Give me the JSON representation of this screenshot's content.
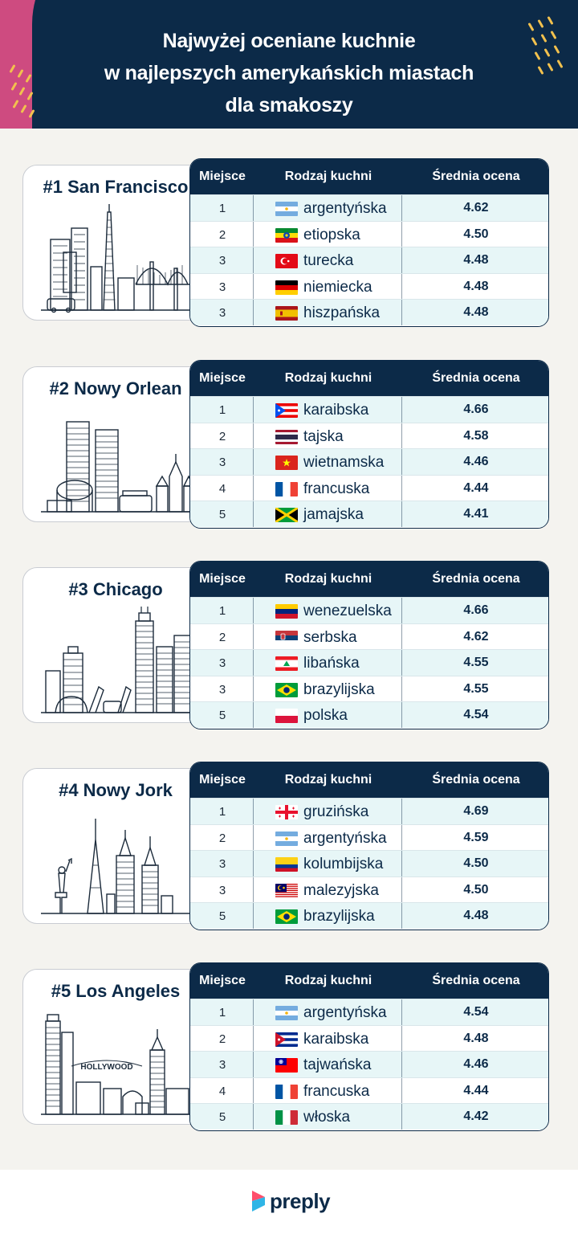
{
  "title": {
    "line1": "Najwyżej oceniane kuchnie",
    "line2": "w najlepszych amerykańskich miastach",
    "line3": "dla smakoszy"
  },
  "table_headers": {
    "rank": "Miejsce",
    "cuisine": "Rodzaj kuchni",
    "score": "Średnia ocena"
  },
  "cities": [
    {
      "name": "#1 San Francisco",
      "rows": [
        {
          "rank": "1",
          "cuisine": "argentyńska",
          "score": "4.62",
          "flag": "argentina"
        },
        {
          "rank": "2",
          "cuisine": "etiopska",
          "score": "4.50",
          "flag": "ethiopia"
        },
        {
          "rank": "3",
          "cuisine": "turecka",
          "score": "4.48",
          "flag": "turkey"
        },
        {
          "rank": "3",
          "cuisine": "niemiecka",
          "score": "4.48",
          "flag": "germany"
        },
        {
          "rank": "3",
          "cuisine": "hiszpańska",
          "score": "4.48",
          "flag": "spain"
        }
      ]
    },
    {
      "name": "#2 Nowy Orlean",
      "rows": [
        {
          "rank": "1",
          "cuisine": "karaibska",
          "score": "4.66",
          "flag": "puerto-rico"
        },
        {
          "rank": "2",
          "cuisine": "tajska",
          "score": "4.58",
          "flag": "thailand"
        },
        {
          "rank": "3",
          "cuisine": "wietnamska",
          "score": "4.46",
          "flag": "vietnam"
        },
        {
          "rank": "4",
          "cuisine": "francuska",
          "score": "4.44",
          "flag": "france"
        },
        {
          "rank": "5",
          "cuisine": "jamajska",
          "score": "4.41",
          "flag": "jamaica"
        }
      ]
    },
    {
      "name": "#3 Chicago",
      "rows": [
        {
          "rank": "1",
          "cuisine": "wenezuelska",
          "score": "4.66",
          "flag": "venezuela"
        },
        {
          "rank": "2",
          "cuisine": "serbska",
          "score": "4.62",
          "flag": "serbia"
        },
        {
          "rank": "3",
          "cuisine": "libańska",
          "score": "4.55",
          "flag": "lebanon"
        },
        {
          "rank": "3",
          "cuisine": "brazylijska",
          "score": "4.55",
          "flag": "brazil"
        },
        {
          "rank": "5",
          "cuisine": "polska",
          "score": "4.54",
          "flag": "poland"
        }
      ]
    },
    {
      "name": "#4 Nowy Jork",
      "rows": [
        {
          "rank": "1",
          "cuisine": "gruzińska",
          "score": "4.69",
          "flag": "georgia"
        },
        {
          "rank": "2",
          "cuisine": "argentyńska",
          "score": "4.59",
          "flag": "argentina"
        },
        {
          "rank": "3",
          "cuisine": "kolumbijska",
          "score": "4.50",
          "flag": "colombia"
        },
        {
          "rank": "3",
          "cuisine": "malezyjska",
          "score": "4.50",
          "flag": "malaysia"
        },
        {
          "rank": "5",
          "cuisine": "brazylijska",
          "score": "4.48",
          "flag": "brazil"
        }
      ]
    },
    {
      "name": "#5 Los Angeles",
      "rows": [
        {
          "rank": "1",
          "cuisine": "argentyńska",
          "score": "4.54",
          "flag": "argentina"
        },
        {
          "rank": "2",
          "cuisine": "karaibska",
          "score": "4.48",
          "flag": "cuba"
        },
        {
          "rank": "3",
          "cuisine": "tajwańska",
          "score": "4.46",
          "flag": "taiwan"
        },
        {
          "rank": "4",
          "cuisine": "francuska",
          "score": "4.44",
          "flag": "france"
        },
        {
          "rank": "5",
          "cuisine": "włoska",
          "score": "4.42",
          "flag": "italy"
        }
      ]
    }
  ],
  "skyline_signs": {
    "hollywood": "HOLLYWOOD"
  },
  "footer": {
    "logo_text": "preply"
  },
  "colors": {
    "navy": "#0c2a48",
    "pink": "#ce4b80",
    "accent_yellow": "#f2c14e",
    "row_tint": "#e7f6f7"
  }
}
